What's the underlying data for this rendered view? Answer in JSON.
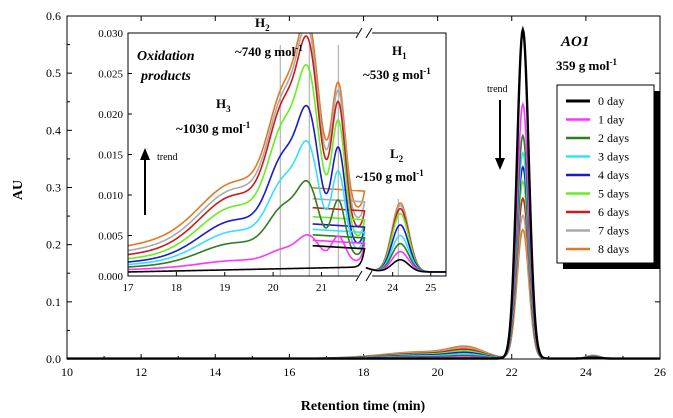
{
  "chart_data": [
    {
      "type": "line",
      "title": "",
      "xlabel": "Retention time (min)",
      "ylabel": "AU",
      "xlim": [
        10,
        26
      ],
      "ylim": [
        0,
        0.6
      ],
      "x_ticks": [
        "10",
        "12",
        "14",
        "16",
        "18",
        "20",
        "22",
        "24",
        "26"
      ],
      "y_ticks": [
        "0.0",
        "0.1",
        "0.2",
        "0.3",
        "0.4",
        "0.5",
        "0.6"
      ],
      "grid": false,
      "legend": {
        "placement": "right",
        "entries": [
          "0 day",
          "1 day",
          "2 days",
          "3 days",
          "4 days",
          "5 days",
          "6 days",
          "7 days",
          "8 days"
        ]
      },
      "annotations": {
        "compound": "AO1",
        "mw": "359 g mol",
        "mw_sup": "-1",
        "trend": "trend"
      },
      "series": [
        {
          "name": "0 day",
          "color": "#000000",
          "peak": 0.575
        },
        {
          "name": "1 day",
          "color": "#ff33ff",
          "peak": 0.445
        },
        {
          "name": "2 days",
          "color": "#2e7d1e",
          "peak": 0.39
        },
        {
          "name": "3 days",
          "color": "#33e0ff",
          "peak": 0.36
        },
        {
          "name": "4 days",
          "color": "#1a1acc",
          "peak": 0.335
        },
        {
          "name": "5 days",
          "color": "#66ee22",
          "peak": 0.31
        },
        {
          "name": "6 days",
          "color": "#cc1a1a",
          "peak": 0.28
        },
        {
          "name": "7 days",
          "color": "#aaaaaa",
          "peak": 0.25
        },
        {
          "name": "8 days",
          "color": "#e07a22",
          "peak": 0.225
        }
      ]
    },
    {
      "type": "line",
      "title": "Oxidation products",
      "title_line1": "Oxidation",
      "title_line2": "products",
      "xlim": [
        17,
        25.4
      ],
      "axis_break": [
        21.9,
        23.3
      ],
      "ylim": [
        0,
        0.03
      ],
      "x_ticks": [
        "17",
        "18",
        "19",
        "20",
        "21",
        "24",
        "25"
      ],
      "y_ticks": [
        "0.000",
        "0.005",
        "0.010",
        "0.015",
        "0.020",
        "0.025",
        "0.030"
      ],
      "reference_lines_x": [
        20.15,
        20.75,
        21.35
      ],
      "annotations": {
        "trend": "trend",
        "peaks": [
          {
            "name": "H",
            "sub": "2",
            "mw": "~740 g mol",
            "sup": "-1"
          },
          {
            "name": "H",
            "sub": "1",
            "mw": "~530 g mol",
            "sup": "-1"
          },
          {
            "name": "H",
            "sub": "3",
            "mw": "~1030 g mol",
            "sup": "-1"
          },
          {
            "name": "L",
            "sub": "2",
            "mw": "~150 g mol",
            "sup": "-1"
          }
        ]
      },
      "series": [
        {
          "name": "0 day",
          "color": "#000000",
          "y17": 0.0005,
          "h3": 0.0005,
          "h2": 0.0006,
          "h1": 0.0008,
          "l2": 0.0015
        },
        {
          "name": "1 day",
          "color": "#ff33ff",
          "y17": 0.0008,
          "h3": 0.0032,
          "h2": 0.0045,
          "h1": 0.0055,
          "l2": 0.0025
        },
        {
          "name": "2 days",
          "color": "#2e7d1e",
          "y17": 0.0011,
          "h3": 0.0085,
          "h2": 0.0095,
          "h1": 0.0105,
          "l2": 0.0035
        },
        {
          "name": "3 days",
          "color": "#33e0ff",
          "y17": 0.0014,
          "h3": 0.0118,
          "h2": 0.0135,
          "h1": 0.0145,
          "l2": 0.0045
        },
        {
          "name": "4 days",
          "color": "#1a1acc",
          "y17": 0.0017,
          "h3": 0.0148,
          "h2": 0.017,
          "h1": 0.0178,
          "l2": 0.0058
        },
        {
          "name": "5 days",
          "color": "#66ee22",
          "y17": 0.0021,
          "h3": 0.0185,
          "h2": 0.021,
          "h1": 0.0215,
          "l2": 0.0072
        },
        {
          "name": "6 days",
          "color": "#cc1a1a",
          "y17": 0.0026,
          "h3": 0.021,
          "h2": 0.024,
          "h1": 0.024,
          "l2": 0.0078
        },
        {
          "name": "7 days",
          "color": "#aaaaaa",
          "y17": 0.0031,
          "h3": 0.0218,
          "h2": 0.0255,
          "h1": 0.0255,
          "l2": 0.0082
        },
        {
          "name": "8 days",
          "color": "#e07a22",
          "y17": 0.0037,
          "h3": 0.0226,
          "h2": 0.0268,
          "h1": 0.0265,
          "l2": 0.0085
        }
      ]
    }
  ]
}
